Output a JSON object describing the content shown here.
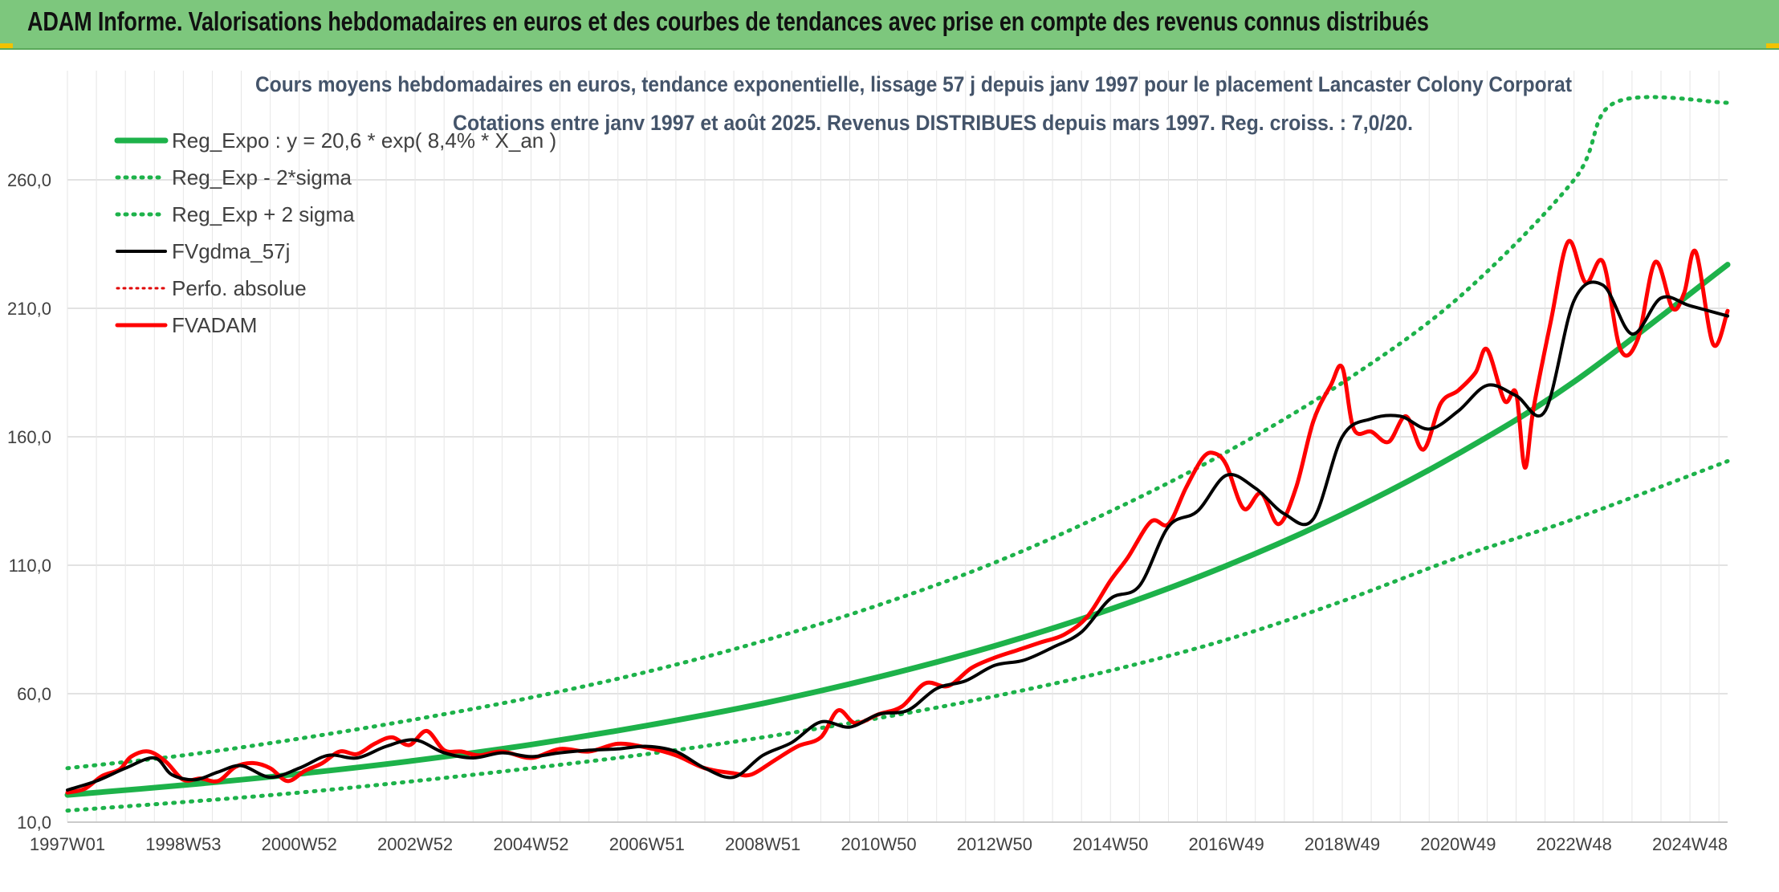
{
  "header": {
    "title": "ADAM Informe. Valorisations hebdomadaires en euros et des courbes de tendances avec prise en compte des revenus connus distribués"
  },
  "colors": {
    "header_bg": "#7dc77d",
    "reg_expo": "#1db24a",
    "sigma": "#1db24a",
    "fvgdma": "#000000",
    "perfo": "#e00000",
    "fvadam": "#ff0000",
    "grid": "#d9d9d9",
    "title_text": "#44546a"
  },
  "chart_data": {
    "type": "line",
    "title": "Cours moyens hebdomadaires en euros, tendance exponentielle, lissage 57 j depuis janv 1997 pour le placement Lancaster Colony Corporat",
    "subtitle": "Cotations entre janv 1997 et août 2025. Revenus DISTRIBUES depuis mars 1997. Reg. croiss. : 7,0/20.",
    "xlabel": "",
    "ylabel": "",
    "ylim": [
      10,
      290
    ],
    "yticks": [
      "10,0",
      "60,0",
      "110,0",
      "160,0",
      "210,0",
      "260,0"
    ],
    "ytick_values": [
      10,
      60,
      110,
      160,
      210,
      260
    ],
    "xlim": [
      1997.0,
      2025.65
    ],
    "x_tick_labels": [
      "1997W01",
      "1998W53",
      "2000W52",
      "2002W52",
      "2004W52",
      "2006W51",
      "2008W51",
      "2010W50",
      "2012W50",
      "2014W50",
      "2016W49",
      "2018W49",
      "2020W49",
      "2022W48",
      "2024W48"
    ],
    "x_tick_years": [
      1997.0,
      1999.0,
      2001.0,
      2003.0,
      2005.0,
      2007.0,
      2009.0,
      2011.0,
      2013.0,
      2015.0,
      2017.0,
      2019.0,
      2021.0,
      2023.0,
      2025.0
    ],
    "grid": true,
    "legend_position": "top-left",
    "legend": [
      {
        "label": "Reg_Expo : y = 20,6 * exp( 8,4% *  X_an )",
        "style": "solid-thick-green"
      },
      {
        "label": "Reg_Exp - 2*sigma",
        "style": "dotted-green"
      },
      {
        "label": "Reg_Exp + 2 sigma",
        "style": "dotted-green"
      },
      {
        "label": "FVgdma_57j",
        "style": "solid-black"
      },
      {
        "label": "Perfo. absolue",
        "style": "dotted-red"
      },
      {
        "label": "FVADAM",
        "style": "solid-red"
      }
    ],
    "series": [
      {
        "name": "Reg_Expo : y = 20,6 * exp( 8,4% *  X_an )",
        "x": [
          1997.0,
          1999.0,
          2001.0,
          2003.0,
          2005.0,
          2007.0,
          2009.0,
          2011.0,
          2013.0,
          2015.0,
          2017.0,
          2019.0,
          2021.0,
          2023.0,
          2025.65
        ],
        "y": [
          20.6,
          24.4,
          28.8,
          34.0,
          40.2,
          47.6,
          56.2,
          66.5,
          78.6,
          92.9,
          109.8,
          129.8,
          153.4,
          181.4,
          227.0
        ]
      },
      {
        "name": "Reg_Exp - 2*sigma",
        "x": [
          1997.0,
          1999.0,
          2001.0,
          2003.0,
          2005.0,
          2007.0,
          2009.0,
          2011.0,
          2013.0,
          2015.0,
          2017.0,
          2019.0,
          2021.0,
          2023.0,
          2025.65
        ],
        "y": [
          14.5,
          17.8,
          21.5,
          26.0,
          31.0,
          36.5,
          43.0,
          50.5,
          59.0,
          69.0,
          81.0,
          96.0,
          113.0,
          128.0,
          150.5
        ]
      },
      {
        "name": "Reg_Exp + 2 sigma",
        "x": [
          1997.0,
          1999.0,
          2001.0,
          2003.0,
          2005.0,
          2007.0,
          2009.0,
          2011.0,
          2013.0,
          2015.0,
          2017.0,
          2019.0,
          2021.0,
          2023.0,
          2023.7,
          2025.65
        ],
        "y": [
          31.0,
          36.0,
          42.5,
          50.0,
          58.5,
          68.5,
          80.5,
          94.5,
          111.0,
          131.0,
          154.0,
          181.0,
          214.0,
          260.0,
          290.0,
          290.0
        ]
      },
      {
        "name": "FVgdma_57j",
        "x": [
          1997.0,
          1997.5,
          1998.0,
          1998.5,
          1998.8,
          1999.2,
          1999.6,
          2000.0,
          2000.5,
          2001.0,
          2001.5,
          2002.0,
          2002.5,
          2003.0,
          2003.5,
          2004.0,
          2004.5,
          2005.0,
          2005.5,
          2006.0,
          2006.5,
          2007.0,
          2007.5,
          2008.0,
          2008.5,
          2009.0,
          2009.5,
          2010.0,
          2010.5,
          2011.0,
          2011.5,
          2012.0,
          2012.5,
          2013.0,
          2013.5,
          2014.0,
          2014.5,
          2015.0,
          2015.5,
          2016.0,
          2016.5,
          2017.0,
          2017.5,
          2018.0,
          2018.5,
          2019.0,
          2019.5,
          2020.0,
          2020.5,
          2021.0,
          2021.5,
          2022.0,
          2022.5,
          2023.0,
          2023.5,
          2024.0,
          2024.5,
          2025.0,
          2025.65
        ],
        "y": [
          22.5,
          26.0,
          31.0,
          35.0,
          28.5,
          26.5,
          29.5,
          32.0,
          27.5,
          31.0,
          36.0,
          35.0,
          39.5,
          42.0,
          37.0,
          35.0,
          37.0,
          35.5,
          37.0,
          38.0,
          38.5,
          39.5,
          37.5,
          31.0,
          27.5,
          36.0,
          41.0,
          49.0,
          47.0,
          52.0,
          53.5,
          62.0,
          65.0,
          71.0,
          73.0,
          78.0,
          84.0,
          97.0,
          102.0,
          125.0,
          131.0,
          145.0,
          140.0,
          130.0,
          128.0,
          160.0,
          167.0,
          168.0,
          163.0,
          170.0,
          180.0,
          176.0,
          170.0,
          213.0,
          219.0,
          200.0,
          214.0,
          211.0,
          207.0
        ]
      },
      {
        "name": "FVADAM",
        "x": [
          1997.0,
          1997.3,
          1997.6,
          1997.9,
          1998.1,
          1998.4,
          1998.7,
          1999.0,
          1999.3,
          1999.6,
          1999.9,
          2000.2,
          2000.5,
          2000.8,
          2001.1,
          2001.4,
          2001.7,
          2002.0,
          2002.3,
          2002.6,
          2002.9,
          2003.2,
          2003.5,
          2003.8,
          2004.1,
          2004.5,
          2005.0,
          2005.5,
          2006.0,
          2006.5,
          2007.0,
          2007.5,
          2008.0,
          2008.5,
          2008.8,
          2009.2,
          2009.6,
          2010.0,
          2010.3,
          2010.6,
          2011.0,
          2011.4,
          2011.8,
          2012.2,
          2012.6,
          2013.0,
          2013.4,
          2013.8,
          2014.2,
          2014.6,
          2015.0,
          2015.3,
          2015.7,
          2016.0,
          2016.3,
          2016.6,
          2016.8,
          2017.0,
          2017.3,
          2017.6,
          2017.9,
          2018.2,
          2018.5,
          2018.8,
          2019.0,
          2019.2,
          2019.5,
          2019.8,
          2020.1,
          2020.4,
          2020.7,
          2021.0,
          2021.3,
          2021.5,
          2021.8,
          2022.0,
          2022.15,
          2022.3,
          2022.6,
          2022.9,
          2023.2,
          2023.5,
          2023.8,
          2024.1,
          2024.4,
          2024.7,
          2024.9,
          2025.1,
          2025.4,
          2025.65
        ],
        "y": [
          21.5,
          23.0,
          28.0,
          30.5,
          35.5,
          37.5,
          33.5,
          26.5,
          27.0,
          26.0,
          31.5,
          33.0,
          31.0,
          26.0,
          30.0,
          33.0,
          37.5,
          36.5,
          40.5,
          43.0,
          40.0,
          45.5,
          38.0,
          37.5,
          36.0,
          37.5,
          35.0,
          38.5,
          37.5,
          40.5,
          39.0,
          36.0,
          31.0,
          29.0,
          28.5,
          34.0,
          39.5,
          43.0,
          53.5,
          48.5,
          52.0,
          55.0,
          64.0,
          63.0,
          70.0,
          74.0,
          77.0,
          80.0,
          83.0,
          90.0,
          104.0,
          113.0,
          127.0,
          126.0,
          140.0,
          152.0,
          153.5,
          149.0,
          132.0,
          138.0,
          126.0,
          140.0,
          166.0,
          180.0,
          187.0,
          163.0,
          162.0,
          158.0,
          168.0,
          155.0,
          173.0,
          178.0,
          185.0,
          194.0,
          174.0,
          177.0,
          148.0,
          171.0,
          205.0,
          236.0,
          220.0,
          228.0,
          194.0,
          198.0,
          228.0,
          210.0,
          216.0,
          232.0,
          196.0,
          209.0
        ]
      }
    ]
  }
}
